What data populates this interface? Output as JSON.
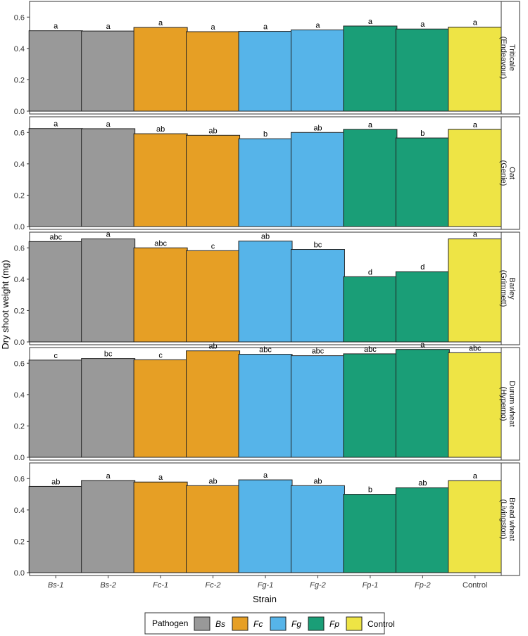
{
  "chart_data": {
    "type": "bar",
    "xlabel": "Strain",
    "ylabel": "Dry shoot weight (mg)",
    "ylim": [
      0,
      0.7
    ],
    "yticks": [
      "0.0",
      "0.2",
      "0.4",
      "0.6"
    ],
    "categories": [
      "Bs-1",
      "Bs-2",
      "Fc-1",
      "Fc-2",
      "Fg-1",
      "Fg-2",
      "Fp-1",
      "Fp-2",
      "Control"
    ],
    "category_italic": [
      true,
      true,
      true,
      true,
      true,
      true,
      true,
      true,
      false
    ],
    "category_pathogen": [
      "Bs",
      "Bs",
      "Fc",
      "Fc",
      "Fg",
      "Fg",
      "Fp",
      "Fp",
      "Control"
    ],
    "pathogen_colors": {
      "Bs": "#999999",
      "Fc": "#E69F25",
      "Fg": "#56B4E9",
      "Fp": "#1A9E77",
      "Control": "#EEE445"
    },
    "panels": [
      {
        "label_line1": "Triticale",
        "label_line2": "(Endeavour)",
        "values": [
          0.513,
          0.511,
          0.534,
          0.507,
          0.509,
          0.518,
          0.543,
          0.524,
          0.536
        ],
        "letters": [
          "a",
          "a",
          "a",
          "a",
          "a",
          "a",
          "a",
          "a",
          "a"
        ]
      },
      {
        "label_line1": "Oat",
        "label_line2": "(Genie)",
        "values": [
          0.625,
          0.624,
          0.592,
          0.582,
          0.56,
          0.6,
          0.62,
          0.565,
          0.62
        ],
        "letters": [
          "a",
          "a",
          "ab",
          "ab",
          "b",
          "ab",
          "a",
          "b",
          "a"
        ]
      },
      {
        "label_line1": "Barley",
        "label_line2": "(Grimmett)",
        "values": [
          0.64,
          0.657,
          0.6,
          0.582,
          0.643,
          0.59,
          0.416,
          0.448,
          0.657
        ],
        "letters": [
          "abc",
          "a",
          "abc",
          "c",
          "ab",
          "bc",
          "d",
          "d",
          "a"
        ]
      },
      {
        "label_line1": "Durum wheat",
        "label_line2": "(Hyperno)",
        "values": [
          0.62,
          0.63,
          0.622,
          0.679,
          0.657,
          0.648,
          0.66,
          0.688,
          0.667
        ],
        "letters": [
          "c",
          "bc",
          "c",
          "ab",
          "abc",
          "abc",
          "abc",
          "a",
          "abc"
        ]
      },
      {
        "label_line1": "Bread wheat",
        "label_line2": "(Livingston)",
        "values": [
          0.55,
          0.588,
          0.578,
          0.555,
          0.592,
          0.555,
          0.5,
          0.542,
          0.587
        ],
        "letters": [
          "ab",
          "a",
          "a",
          "ab",
          "a",
          "ab",
          "b",
          "ab",
          "a"
        ]
      }
    ],
    "legend": {
      "title": "Pathogen",
      "placement": "bottom",
      "items": [
        {
          "key": "Bs",
          "label": "Bs",
          "italic": true
        },
        {
          "key": "Fc",
          "label": "Fc",
          "italic": true
        },
        {
          "key": "Fg",
          "label": "Fg",
          "italic": true
        },
        {
          "key": "Fp",
          "label": "Fp",
          "italic": true
        },
        {
          "key": "Control",
          "label": "Control",
          "italic": false
        }
      ]
    },
    "grid": false
  }
}
